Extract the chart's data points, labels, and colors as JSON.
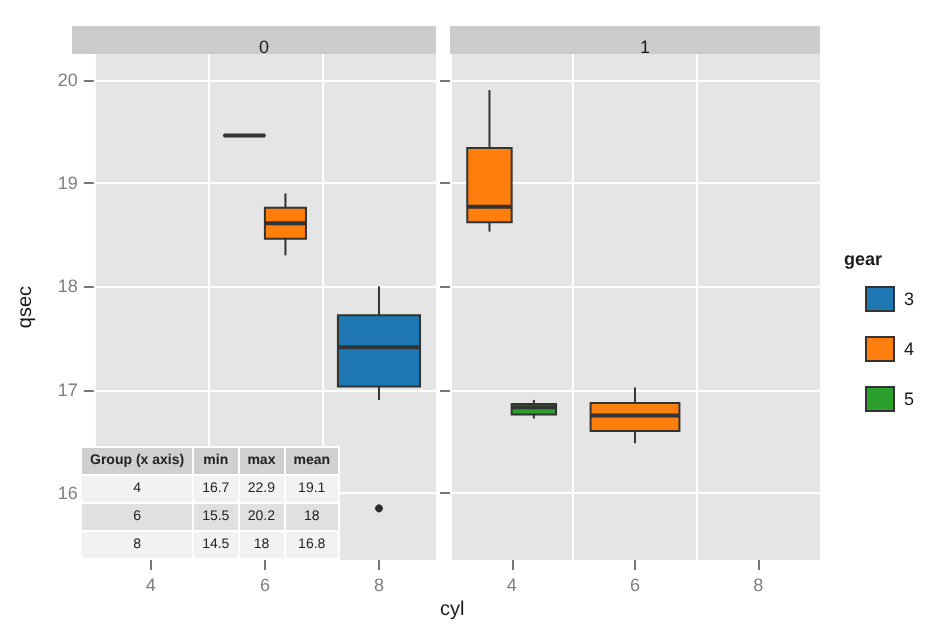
{
  "chart_data": [
    {
      "type": "box",
      "title": "0",
      "ylabel": "qsec",
      "categories": [
        "4",
        "6",
        "8"
      ],
      "ylim": [
        15.35,
        20.25
      ],
      "yticks": [
        16,
        17,
        18,
        19,
        20
      ],
      "grid": true,
      "legend": false,
      "series": [
        {
          "color": "#1f77b4",
          "boxes": [
            null,
            {
              "low": 19.46,
              "q1": 19.46,
              "median": 19.46,
              "q3": 19.46,
              "high": 19.46
            },
            {
              "low": 16.9,
              "q1": 17.03,
              "median": 17.41,
              "q3": 17.72,
              "high": 18.0,
              "outliers": [
                15.85
              ]
            }
          ]
        },
        {
          "color": "#ff7f0e",
          "boxes": [
            null,
            {
              "low": 18.3,
              "q1": 18.46,
              "median": 18.61,
              "q3": 18.76,
              "high": 18.9
            },
            null
          ]
        }
      ]
    },
    {
      "type": "box",
      "title": "1",
      "xlabel": "cyl",
      "legend_title": "gear",
      "legend": "right",
      "tick_labels": "x",
      "categories": [
        "4",
        "6",
        "8"
      ],
      "ylim": [
        15.35,
        20.25
      ],
      "yticks": [
        16,
        17,
        18,
        19,
        20
      ],
      "grid": true,
      "series": [
        {
          "name": "3",
          "color": "#1f77b4",
          "boxes": [
            null,
            null,
            null
          ]
        },
        {
          "name": "4",
          "color": "#ff7f0e",
          "boxes": [
            {
              "low": 18.53,
              "q1": 18.62,
              "median": 18.77,
              "q3": 19.34,
              "high": 19.9
            },
            {
              "low": 16.48,
              "q1": 16.6,
              "median": 16.75,
              "q3": 16.87,
              "high": 17.02
            },
            null
          ]
        },
        {
          "name": "5",
          "color": "#2ca02c",
          "boxes": [
            {
              "low": 16.72,
              "q1": 16.76,
              "median": 16.83,
              "q3": 16.86,
              "high": 16.9
            },
            null,
            null
          ]
        }
      ]
    },
    {
      "type": "other",
      "categories": [
        "Group (x axis)",
        "min",
        "max",
        "mean"
      ],
      "annotations": [
        "4",
        "16.7",
        "22.9",
        "19.1",
        "6",
        "15.5",
        "20.2",
        "18",
        "8",
        "14.5",
        "18",
        "16.8"
      ]
    }
  ]
}
